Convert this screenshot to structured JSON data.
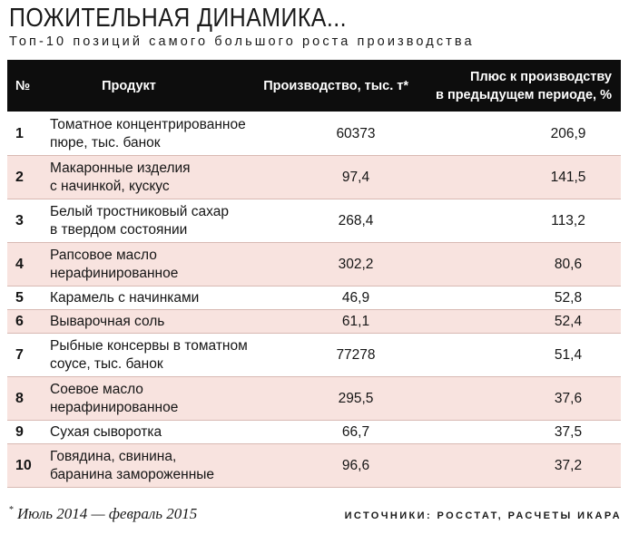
{
  "title": "ПОЖИТЕЛЬНАЯ ДИНАМИКА...",
  "subtitle": "Топ-10 позиций самого большого роста производства",
  "table": {
    "headers": {
      "num": "№",
      "product": "Продукт",
      "production": "Производство, тыс. т*",
      "plus_line1": "Плюс к производству",
      "plus_line2": "в предыдущем периоде, %"
    },
    "rows": [
      {
        "num": "1",
        "product_line1": "Томатное концентрированное",
        "product_line2": "пюре, тыс. банок",
        "production": "60373",
        "plus": "206,9"
      },
      {
        "num": "2",
        "product_line1": "Макаронные изделия",
        "product_line2": "с начинкой, кускус",
        "production": "97,4",
        "plus": "141,5"
      },
      {
        "num": "3",
        "product_line1": "Белый тростниковый сахар",
        "product_line2": "в твердом состоянии",
        "production": "268,4",
        "plus": "113,2"
      },
      {
        "num": "4",
        "product_line1": "Рапсовое масло",
        "product_line2": "нерафинированное",
        "production": "302,2",
        "plus": "80,6"
      },
      {
        "num": "5",
        "product_line1": "Карамель с начинками",
        "product_line2": "",
        "production": "46,9",
        "plus": "52,8"
      },
      {
        "num": "6",
        "product_line1": "Выварочная соль",
        "product_line2": "",
        "production": "61,1",
        "plus": "52,4"
      },
      {
        "num": "7",
        "product_line1": "Рыбные консервы в томатном",
        "product_line2": "соусе, тыс. банок",
        "production": "77278",
        "plus": "51,4"
      },
      {
        "num": "8",
        "product_line1": "Соевое масло",
        "product_line2": "нерафинированное",
        "production": "295,5",
        "plus": "37,6"
      },
      {
        "num": "9",
        "product_line1": "Сухая сыворотка",
        "product_line2": "",
        "production": "66,7",
        "plus": "37,5"
      },
      {
        "num": "10",
        "product_line1": "Говядина, свинина,",
        "product_line2": "баранина замороженные",
        "production": "96,6",
        "plus": "37,2"
      }
    ]
  },
  "footnote": {
    "mark": "*",
    "text": "Июль 2014 — февраль 2015"
  },
  "source": "ИСТОЧНИКИ: РОССТАТ, РАСЧЕТЫ ИКАРА",
  "colors": {
    "header_bg": "#0d0d0d",
    "row_pink": "#f8e3df",
    "row_white": "#ffffff"
  }
}
